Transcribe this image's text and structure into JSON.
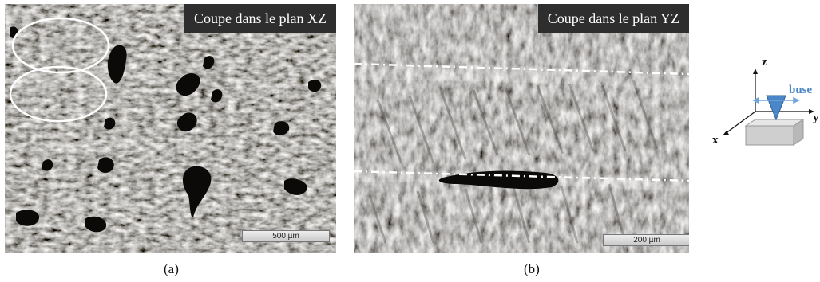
{
  "figure": {
    "panel_a": {
      "title": "Coupe dans le plan XZ",
      "scale_label": "500 µm",
      "caption": "(a)"
    },
    "panel_b": {
      "title": "Coupe dans le plan YZ",
      "scale_label": "200 µm",
      "caption": "(b)"
    },
    "axes_diagram": {
      "z_label": "z",
      "x_label": "x",
      "y_label": "y",
      "nozzle_label": "buse",
      "nozzle_color": "#4a86c8"
    }
  }
}
